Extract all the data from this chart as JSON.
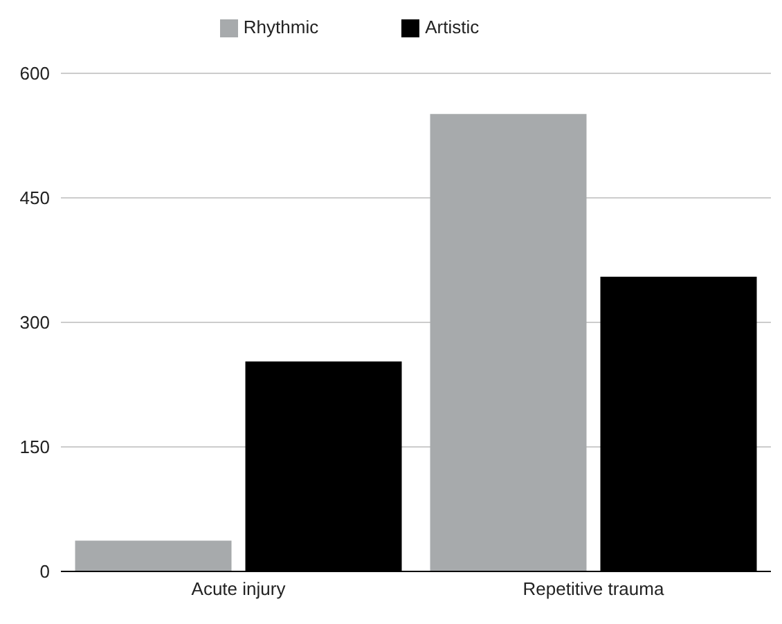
{
  "chart_data": {
    "type": "bar",
    "categories": [
      "Acute injury",
      "Repetitive trauma"
    ],
    "series": [
      {
        "name": "Rhythmic",
        "color": "#a7aaac",
        "values": [
          37,
          551
        ]
      },
      {
        "name": "Artistic",
        "color": "#000000",
        "values": [
          253,
          355
        ]
      }
    ],
    "ylim": [
      0,
      600
    ],
    "yticks": [
      0,
      150,
      300,
      450,
      600
    ],
    "grid": "y",
    "legend": "top"
  }
}
